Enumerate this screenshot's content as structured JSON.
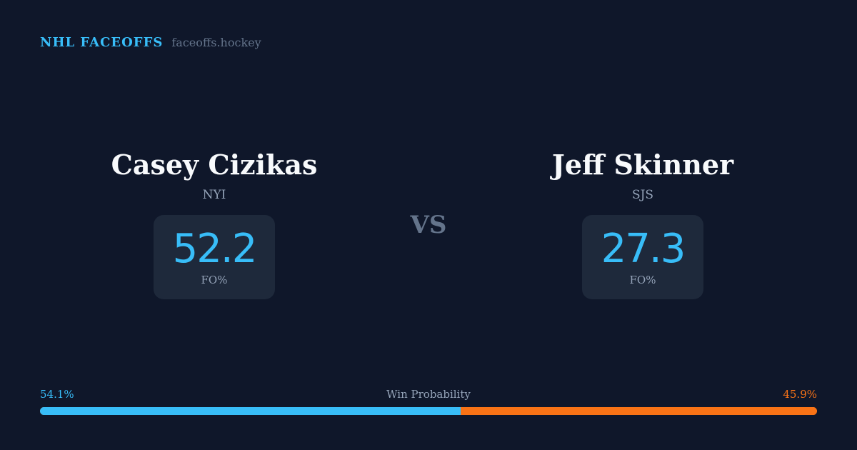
{
  "brand": {
    "title": "NHL FACEOFFS",
    "url": "faceoffs.hockey"
  },
  "players": [
    {
      "name": "Casey Cizikas",
      "team": "NYI",
      "fo_pct": "52.2",
      "fo_label": "FO%"
    },
    {
      "name": "Jeff Skinner",
      "team": "SJS",
      "fo_pct": "27.3",
      "fo_label": "FO%"
    }
  ],
  "vs": "VS",
  "win_probability": {
    "label": "Win Probability",
    "left_text": "54.1%",
    "right_text": "45.9%",
    "left_value": 54.1,
    "right_value": 45.9,
    "colors": {
      "left": "#38bdf8",
      "right": "#f97316"
    }
  }
}
